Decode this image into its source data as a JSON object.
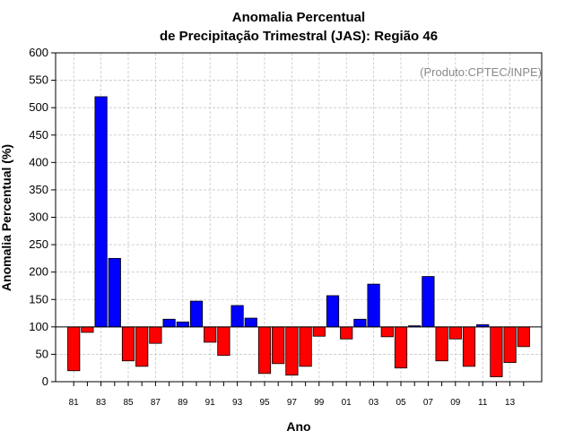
{
  "chart_data": {
    "type": "bar",
    "title_lines": [
      "Anomalia Percentual",
      "de Precipitação Trimestral (JAS): Região 46"
    ],
    "xlabel": "Ano",
    "ylabel": "Anomalia Percentual (%)",
    "credit": "(Produto:CPTEC/INPE)",
    "baseline": 100,
    "ylim": [
      0,
      600
    ],
    "yticks": [
      0,
      50,
      100,
      150,
      200,
      250,
      300,
      350,
      400,
      450,
      500,
      550,
      600
    ],
    "ytick_labels": [
      "0",
      "50",
      "100",
      "150",
      "200",
      "250",
      "300",
      "350",
      "400",
      "450",
      "500",
      "550",
      "600"
    ],
    "grid": true,
    "colors": {
      "above": "#0000ff",
      "below": "#ff0000",
      "grid": "#c8c8c8",
      "edge": "#000000"
    },
    "categories": [
      "81",
      "82",
      "83",
      "84",
      "85",
      "86",
      "87",
      "88",
      "89",
      "90",
      "91",
      "92",
      "93",
      "94",
      "95",
      "96",
      "97",
      "98",
      "99",
      "00",
      "01",
      "02",
      "03",
      "04",
      "05",
      "06",
      "07",
      "08",
      "09",
      "10",
      "11",
      "12",
      "13",
      "14"
    ],
    "x_tick_labels": [
      "81",
      "83",
      "85",
      "87",
      "89",
      "91",
      "93",
      "95",
      "97",
      "99",
      "01",
      "03",
      "05",
      "07",
      "09",
      "11",
      "13"
    ],
    "values": [
      20,
      90,
      520,
      225,
      38,
      28,
      70,
      114,
      109,
      147,
      72,
      48,
      139,
      116,
      15,
      33,
      12,
      28,
      83,
      157,
      78,
      114,
      178,
      82,
      25,
      102,
      192,
      38,
      78,
      28,
      104,
      9,
      35,
      64
    ]
  }
}
